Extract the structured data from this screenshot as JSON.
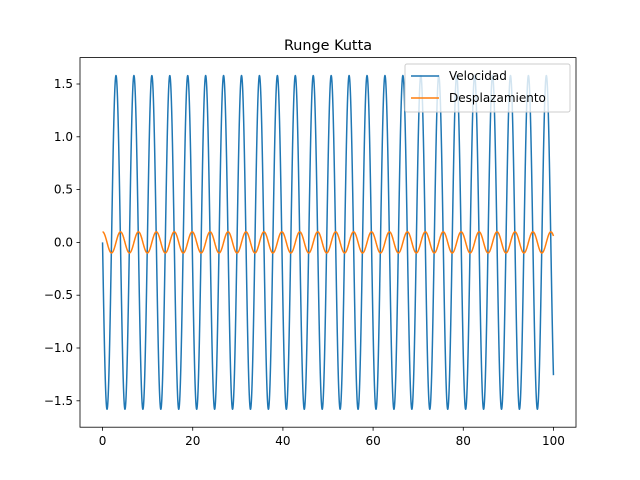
{
  "chart_data": {
    "type": "line",
    "title": "Runge Kutta",
    "xlabel": "",
    "ylabel": "",
    "xlim": [
      -5,
      105
    ],
    "ylim": [
      -1.75,
      1.75
    ],
    "xticks": [
      0,
      20,
      40,
      60,
      80,
      100
    ],
    "xtick_labels": [
      "0",
      "20",
      "40",
      "60",
      "80",
      "100"
    ],
    "yticks": [
      -1.5,
      -1.0,
      -0.5,
      0.0,
      0.5,
      1.0,
      1.5
    ],
    "ytick_labels": [
      "−1.5",
      "−1.0",
      "−0.5",
      "0.0",
      "0.5",
      "1.0",
      "1.5"
    ],
    "grid": false,
    "legend_position": "top-right",
    "series": [
      {
        "name": "Velocidad",
        "color": "#1f77b4",
        "function": "-1.58*sin(1.58*x)",
        "x_range": [
          0,
          100
        ],
        "x": [
          0,
          1,
          2,
          3,
          4,
          5,
          6,
          7,
          8,
          10,
          12,
          14,
          16,
          20,
          30,
          40,
          50,
          60,
          70,
          80,
          90,
          95,
          98,
          100
        ],
        "y": [
          0.0,
          -1.58,
          0.04,
          1.58,
          -0.06,
          -1.58,
          0.08,
          1.58,
          -0.1,
          0.13,
          0.16,
          0.2,
          0.23,
          0.3,
          0.45,
          0.6,
          0.75,
          0.9,
          1.04,
          1.18,
          1.3,
          1.37,
          1.4,
          -1.38
        ]
      },
      {
        "name": "Desplazamiento",
        "color": "#ff7f0e",
        "function": "0.1*cos(1.58*x)",
        "x_range": [
          0,
          100
        ],
        "x": [
          0,
          1,
          2,
          3,
          4,
          5,
          6,
          8,
          10,
          20,
          40,
          60,
          80,
          100
        ],
        "y": [
          0.1,
          -0.001,
          -0.1,
          0.003,
          0.1,
          0.0,
          -0.1,
          0.1,
          0.0,
          0.02,
          0.05,
          0.08,
          0.1,
          0.06
        ]
      }
    ]
  }
}
